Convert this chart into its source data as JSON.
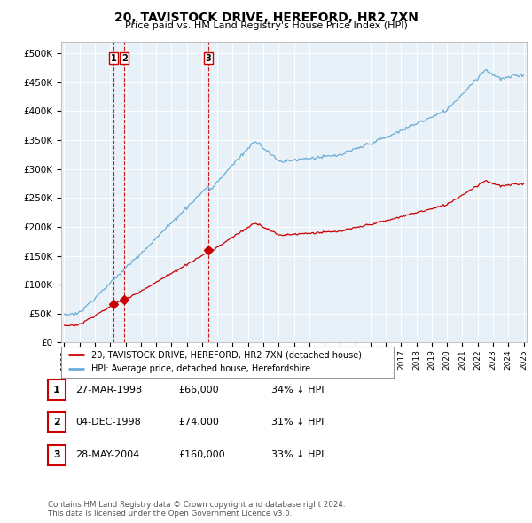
{
  "title": "20, TAVISTOCK DRIVE, HEREFORD, HR2 7XN",
  "subtitle": "Price paid vs. HM Land Registry's House Price Index (HPI)",
  "hpi_color": "#6baed6",
  "price_color": "#cc0000",
  "dashed_line_color": "#cc0000",
  "background_color": "#ffffff",
  "chart_bg_color": "#e8f0f8",
  "grid_color": "#ffffff",
  "ylim": [
    0,
    520000
  ],
  "yticks": [
    0,
    50000,
    100000,
    150000,
    200000,
    250000,
    300000,
    350000,
    400000,
    450000,
    500000
  ],
  "ytick_labels": [
    "£0",
    "£50K",
    "£100K",
    "£150K",
    "£200K",
    "£250K",
    "£300K",
    "£350K",
    "£400K",
    "£450K",
    "£500K"
  ],
  "purchase_dates": [
    1998.23,
    1998.92,
    2004.4
  ],
  "purchase_prices": [
    66000,
    74000,
    160000
  ],
  "purchase_labels": [
    "1",
    "2",
    "3"
  ],
  "table_rows": [
    {
      "num": "1",
      "date": "27-MAR-1998",
      "price": "£66,000",
      "pct": "34% ↓ HPI"
    },
    {
      "num": "2",
      "date": "04-DEC-1998",
      "price": "£74,000",
      "pct": "31% ↓ HPI"
    },
    {
      "num": "3",
      "date": "28-MAY-2004",
      "price": "£160,000",
      "pct": "33% ↓ HPI"
    }
  ],
  "footer": "Contains HM Land Registry data © Crown copyright and database right 2024.\nThis data is licensed under the Open Government Licence v3.0.",
  "legend_label_price": "20, TAVISTOCK DRIVE, HEREFORD, HR2 7XN (detached house)",
  "legend_label_hpi": "HPI: Average price, detached house, Herefordshire",
  "xmin": 1995,
  "xmax": 2025
}
